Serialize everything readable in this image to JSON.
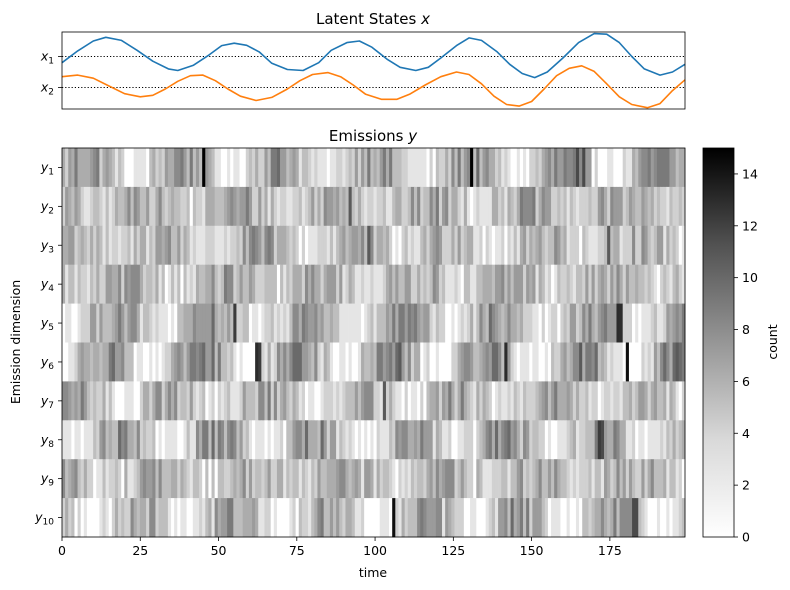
{
  "chart_data": [
    {
      "type": "line",
      "title": "Latent States x",
      "title_parts": {
        "text": "Latent States ",
        "math": "x"
      },
      "x_range": [
        0,
        199
      ],
      "y_ticks": [
        {
          "base": "x",
          "sub": "1",
          "value": 1
        },
        {
          "base": "x",
          "sub": "2",
          "value": 0
        }
      ],
      "reference_lines": [
        1,
        0
      ],
      "series": [
        {
          "name": "x1",
          "color": "#1f77b4",
          "points": [
            [
              0,
              0.8
            ],
            [
              5,
              1.18
            ],
            [
              10,
              1.5
            ],
            [
              14,
              1.62
            ],
            [
              19,
              1.52
            ],
            [
              24,
              1.2
            ],
            [
              29,
              0.85
            ],
            [
              34,
              0.6
            ],
            [
              37,
              0.55
            ],
            [
              42,
              0.72
            ],
            [
              47,
              1.05
            ],
            [
              51,
              1.35
            ],
            [
              55,
              1.43
            ],
            [
              59,
              1.36
            ],
            [
              63,
              1.15
            ],
            [
              67,
              0.78
            ],
            [
              72,
              0.58
            ],
            [
              77,
              0.55
            ],
            [
              82,
              0.8
            ],
            [
              86,
              1.2
            ],
            [
              91,
              1.45
            ],
            [
              95,
              1.5
            ],
            [
              99,
              1.3
            ],
            [
              104,
              0.9
            ],
            [
              108,
              0.65
            ],
            [
              113,
              0.55
            ],
            [
              117,
              0.65
            ],
            [
              121,
              0.95
            ],
            [
              126,
              1.35
            ],
            [
              130,
              1.6
            ],
            [
              134,
              1.52
            ],
            [
              139,
              1.15
            ],
            [
              143,
              0.75
            ],
            [
              147,
              0.45
            ],
            [
              151,
              0.32
            ],
            [
              155,
              0.5
            ],
            [
              160,
              0.95
            ],
            [
              165,
              1.45
            ],
            [
              170,
              1.74
            ],
            [
              174,
              1.72
            ],
            [
              178,
              1.45
            ],
            [
              182,
              1.0
            ],
            [
              186,
              0.6
            ],
            [
              191,
              0.4
            ],
            [
              195,
              0.5
            ],
            [
              199,
              0.75
            ]
          ]
        },
        {
          "name": "x2",
          "color": "#ff7f0e",
          "points": [
            [
              0,
              0.35
            ],
            [
              5,
              0.4
            ],
            [
              10,
              0.3
            ],
            [
              15,
              0.05
            ],
            [
              20,
              -0.2
            ],
            [
              25,
              -0.3
            ],
            [
              29,
              -0.25
            ],
            [
              33,
              -0.05
            ],
            [
              37,
              0.2
            ],
            [
              41,
              0.38
            ],
            [
              45,
              0.4
            ],
            [
              49,
              0.22
            ],
            [
              53,
              -0.05
            ],
            [
              57,
              -0.28
            ],
            [
              62,
              -0.42
            ],
            [
              67,
              -0.32
            ],
            [
              72,
              -0.05
            ],
            [
              76,
              0.22
            ],
            [
              80,
              0.42
            ],
            [
              85,
              0.48
            ],
            [
              89,
              0.35
            ],
            [
              93,
              0.08
            ],
            [
              97,
              -0.22
            ],
            [
              102,
              -0.38
            ],
            [
              107,
              -0.38
            ],
            [
              111,
              -0.22
            ],
            [
              116,
              0.08
            ],
            [
              121,
              0.35
            ],
            [
              126,
              0.5
            ],
            [
              130,
              0.42
            ],
            [
              134,
              0.12
            ],
            [
              138,
              -0.28
            ],
            [
              142,
              -0.55
            ],
            [
              146,
              -0.6
            ],
            [
              150,
              -0.45
            ],
            [
              154,
              -0.05
            ],
            [
              158,
              0.38
            ],
            [
              162,
              0.62
            ],
            [
              166,
              0.7
            ],
            [
              170,
              0.52
            ],
            [
              174,
              0.12
            ],
            [
              178,
              -0.3
            ],
            [
              182,
              -0.55
            ],
            [
              187,
              -0.65
            ],
            [
              191,
              -0.52
            ],
            [
              195,
              -0.1
            ],
            [
              199,
              0.25
            ]
          ]
        }
      ]
    },
    {
      "type": "heatmap",
      "title": "Emissions y",
      "title_parts": {
        "text": "Emissions ",
        "math": "y"
      },
      "xlabel": "time",
      "ylabel": "Emission dimension",
      "n_time": 200,
      "x_range": [
        0,
        199
      ],
      "x_ticks": [
        0,
        25,
        50,
        75,
        100,
        125,
        150,
        175
      ],
      "rows": [
        {
          "base": "y",
          "sub": "1"
        },
        {
          "base": "y",
          "sub": "2"
        },
        {
          "base": "y",
          "sub": "3"
        },
        {
          "base": "y",
          "sub": "4"
        },
        {
          "base": "y",
          "sub": "5"
        },
        {
          "base": "y",
          "sub": "6"
        },
        {
          "base": "y",
          "sub": "7"
        },
        {
          "base": "y",
          "sub": "8"
        },
        {
          "base": "y",
          "sub": "9"
        },
        {
          "base": "y",
          "sub": "10"
        }
      ],
      "colormap": "Greys",
      "vmin": 0,
      "vmax": 15,
      "row_profiles": [
        {
          "base": 3.0,
          "amp": 2.6,
          "freq": 0.205,
          "phase": 0.0,
          "spikes": [
            [
              45,
              15
            ],
            [
              131,
              15
            ],
            [
              165,
              10
            ],
            [
              167,
              10
            ]
          ]
        },
        {
          "base": 3.2,
          "amp": 1.4,
          "freq": 0.205,
          "phase": 2.5,
          "spikes": [
            [
              92,
              9
            ]
          ]
        },
        {
          "base": 2.8,
          "amp": 1.6,
          "freq": 0.205,
          "phase": 1.2,
          "spikes": [
            [
              98,
              9
            ],
            [
              175,
              9
            ]
          ]
        },
        {
          "base": 3.0,
          "amp": 1.2,
          "freq": 0.205,
          "phase": 3.4,
          "spikes": []
        },
        {
          "base": 3.0,
          "amp": 2.4,
          "freq": 0.205,
          "phase": 4.3,
          "spikes": [
            [
              55,
              11
            ],
            [
              178,
              12
            ],
            [
              179,
              12
            ]
          ]
        },
        {
          "base": 3.2,
          "amp": 3.2,
          "freq": 0.205,
          "phase": 5.1,
          "spikes": [
            [
              62,
              12
            ],
            [
              63,
              11
            ],
            [
              142,
              12
            ],
            [
              181,
              14
            ]
          ]
        },
        {
          "base": 2.8,
          "amp": 1.8,
          "freq": 0.205,
          "phase": 0.8,
          "spikes": [
            [
              103,
              9
            ]
          ]
        },
        {
          "base": 3.0,
          "amp": 2.6,
          "freq": 0.205,
          "phase": 3.9,
          "spikes": [
            [
              172,
              11
            ],
            [
              173,
              10
            ]
          ]
        },
        {
          "base": 3.0,
          "amp": 1.4,
          "freq": 0.205,
          "phase": 1.8,
          "spikes": []
        },
        {
          "base": 2.6,
          "amp": 2.4,
          "freq": 0.205,
          "phase": 2.9,
          "spikes": [
            [
              106,
              14
            ],
            [
              144,
              8
            ],
            [
              183,
              10
            ],
            [
              184,
              10
            ]
          ]
        }
      ]
    }
  ],
  "colorbar": {
    "label": "count",
    "ticks": [
      0,
      2,
      4,
      6,
      8,
      10,
      12,
      14
    ],
    "range": [
      0,
      15
    ]
  }
}
